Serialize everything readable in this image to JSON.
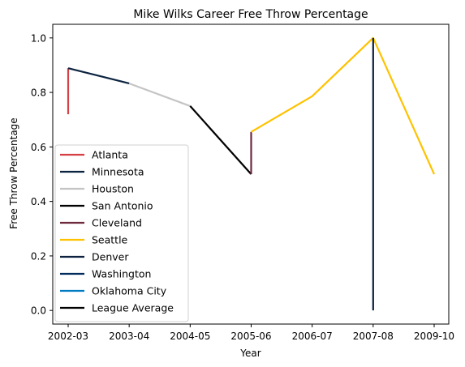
{
  "chart_data": {
    "type": "line",
    "title": "Mike Wilks  Career Free Throw Percentage",
    "xlabel": "Year",
    "ylabel": "Free Throw Percentage",
    "ylim": [
      -0.05,
      1.05
    ],
    "yticks": [
      0.0,
      0.2,
      0.4,
      0.6,
      0.8,
      1.0
    ],
    "ytick_labels": [
      "0.0",
      "0.2",
      "0.4",
      "0.6",
      "0.8",
      "1.0"
    ],
    "categories": [
      "2002-03",
      "2003-04",
      "2004-05",
      "2005-06",
      "2006-07",
      "2007-08",
      "2009-10"
    ],
    "legend_position": "lower left",
    "grid": false,
    "series": [
      {
        "name": "Atlanta",
        "color": "#d64045",
        "points": [
          [
            "2002-03",
            0.72
          ],
          [
            "2002-03",
            0.889
          ]
        ]
      },
      {
        "name": "Minnesota",
        "color": "#0c2340",
        "points": [
          [
            "2002-03",
            0.889
          ],
          [
            "2003-04",
            0.833
          ]
        ]
      },
      {
        "name": "Houston",
        "color": "#c4c4c4",
        "points": [
          [
            "2003-04",
            0.833
          ],
          [
            "2004-05",
            0.75
          ]
        ]
      },
      {
        "name": "San Antonio",
        "color": "#000000",
        "points": [
          [
            "2004-05",
            0.75
          ],
          [
            "2005-06",
            0.5
          ]
        ]
      },
      {
        "name": "Cleveland",
        "color": "#6f2a3e",
        "points": [
          [
            "2005-06",
            0.5
          ],
          [
            "2005-06",
            0.655
          ]
        ]
      },
      {
        "name": "Seattle",
        "color": "#ffc200",
        "points": [
          [
            "2005-06",
            0.655
          ],
          [
            "2006-07",
            0.786
          ],
          [
            "2007-08",
            1.0
          ],
          [
            "2009-10",
            0.5
          ]
        ]
      },
      {
        "name": "Denver",
        "color": "#0e2240",
        "points": [
          [
            "2007-08",
            1.0
          ],
          [
            "2007-08",
            0.0
          ]
        ]
      },
      {
        "name": "Washington",
        "color": "#002b5c",
        "points": []
      },
      {
        "name": "Oklahoma City",
        "color": "#007ac1",
        "points": []
      },
      {
        "name": "League Average",
        "color": "#000000",
        "points": []
      }
    ]
  }
}
